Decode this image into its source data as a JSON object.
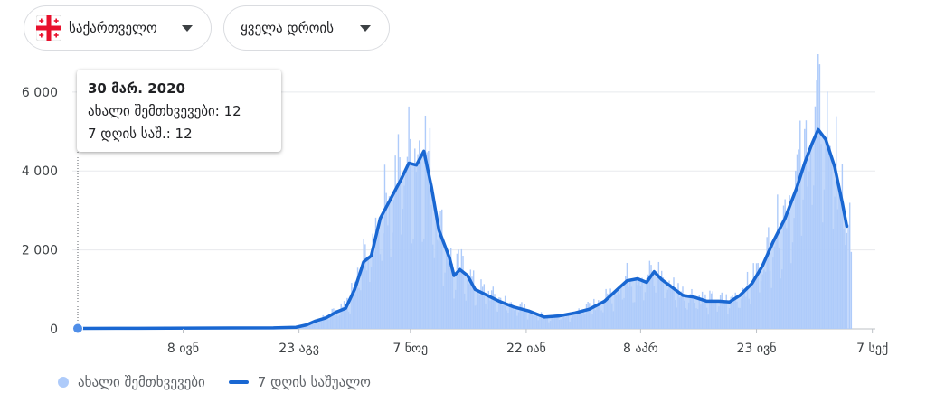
{
  "controls": {
    "region_label": "საქართველო",
    "time_label": "ყველა დროის"
  },
  "tooltip": {
    "date": "30 მარ. 2020",
    "line1": "ახალი შემთხვევები: 12",
    "line2": "7 დღის საშ.: 12"
  },
  "legend": {
    "bars_label": "ახალი შემთხვევები",
    "line_label": "7 დღის საშუალო"
  },
  "colors": {
    "bars": "#aecbfa",
    "line": "#1967d2",
    "grid": "#e8eaed",
    "flag_red": "#e8112d"
  },
  "chart_data": {
    "type": "bar",
    "title": "",
    "xlabel": "",
    "ylabel": "",
    "ylim": [
      0,
      6500
    ],
    "y_ticks": [
      0,
      2000,
      4000,
      6000
    ],
    "y_tick_labels": [
      "0",
      "2 000",
      "4 000",
      "6 000"
    ],
    "x_range": [
      0,
      530
    ],
    "x_ticks": [
      70,
      147,
      221,
      298,
      374,
      451,
      528
    ],
    "x_tick_labels": [
      "8 ივნ",
      "23 აგვ",
      "7 ნოე",
      "22 იან",
      "8 აპრ",
      "23 ივნ",
      "7 სექ"
    ],
    "x_unit": "days since 30 Mar 2020",
    "bar_daily_series_name": "ახალი შემთხვევები",
    "line_series_name": "7 დღის საშუალო",
    "highlight": {
      "day": 0,
      "value": 12
    },
    "avg_points": [
      [
        0,
        12
      ],
      [
        40,
        15
      ],
      [
        80,
        20
      ],
      [
        130,
        25
      ],
      [
        145,
        40
      ],
      [
        152,
        100
      ],
      [
        158,
        200
      ],
      [
        165,
        280
      ],
      [
        172,
        430
      ],
      [
        178,
        520
      ],
      [
        184,
        1000
      ],
      [
        190,
        1700
      ],
      [
        195,
        1850
      ],
      [
        201,
        2800
      ],
      [
        208,
        3300
      ],
      [
        215,
        3800
      ],
      [
        220,
        4200
      ],
      [
        225,
        4150
      ],
      [
        230,
        4500
      ],
      [
        235,
        3600
      ],
      [
        240,
        2500
      ],
      [
        247,
        1800
      ],
      [
        250,
        1350
      ],
      [
        254,
        1500
      ],
      [
        259,
        1350
      ],
      [
        264,
        1000
      ],
      [
        272,
        850
      ],
      [
        280,
        700
      ],
      [
        290,
        550
      ],
      [
        300,
        450
      ],
      [
        310,
        300
      ],
      [
        320,
        330
      ],
      [
        330,
        400
      ],
      [
        340,
        500
      ],
      [
        350,
        700
      ],
      [
        360,
        1050
      ],
      [
        365,
        1220
      ],
      [
        372,
        1270
      ],
      [
        378,
        1180
      ],
      [
        383,
        1450
      ],
      [
        388,
        1250
      ],
      [
        395,
        1050
      ],
      [
        402,
        850
      ],
      [
        410,
        800
      ],
      [
        418,
        700
      ],
      [
        426,
        700
      ],
      [
        433,
        680
      ],
      [
        440,
        850
      ],
      [
        448,
        1150
      ],
      [
        455,
        1600
      ],
      [
        462,
        2200
      ],
      [
        470,
        2800
      ],
      [
        478,
        3600
      ],
      [
        483,
        4200
      ],
      [
        488,
        4700
      ],
      [
        492,
        5050
      ],
      [
        497,
        4800
      ],
      [
        503,
        4100
      ],
      [
        508,
        3200
      ],
      [
        511,
        2600
      ]
    ]
  }
}
